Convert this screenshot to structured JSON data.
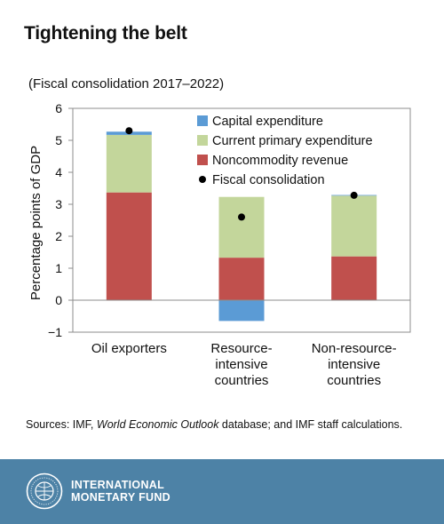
{
  "title": "Tightening the belt",
  "subtitle": "(Fiscal consolidation 2017–2022)",
  "sources": {
    "prefix": "Sources: IMF, ",
    "italic": "World Economic Outlook",
    "suffix": " database; and IMF staff calculations."
  },
  "footer": {
    "line1": "INTERNATIONAL",
    "line2": "MONETARY FUND",
    "logo_icon": "imf-seal-icon"
  },
  "chart_data": {
    "type": "bar",
    "stacked": true,
    "categories": [
      [
        "Oil exporters"
      ],
      [
        "Resource-",
        "intensive",
        "countries"
      ],
      [
        "Non-resource-",
        "intensive",
        "countries"
      ]
    ],
    "series": [
      {
        "name": "Capital expenditure",
        "color": "#5b9bd5",
        "values": [
          0.1,
          -0.65,
          0.02
        ]
      },
      {
        "name": "Current primary expenditure",
        "color": "#c3d69b",
        "values": [
          1.8,
          1.9,
          1.9
        ]
      },
      {
        "name": "Noncommodity revenue",
        "color": "#c0504d",
        "values": [
          3.37,
          1.33,
          1.37
        ]
      }
    ],
    "stack_order": [
      "Noncommodity revenue",
      "Current primary expenditure",
      "Capital expenditure"
    ],
    "markers": {
      "name": "Fiscal consolidation",
      "color": "#000000",
      "values": [
        5.3,
        2.6,
        3.28
      ]
    },
    "legend_order": [
      "Capital expenditure",
      "Current primary expenditure",
      "Noncommodity revenue",
      "Fiscal consolidation"
    ],
    "legend_position": "top-right",
    "ylabel": "Percentage points of GDP",
    "ylim": [
      -1,
      6
    ],
    "yticks": [
      -1,
      0,
      1,
      2,
      3,
      4,
      5,
      6
    ],
    "grid": false
  }
}
